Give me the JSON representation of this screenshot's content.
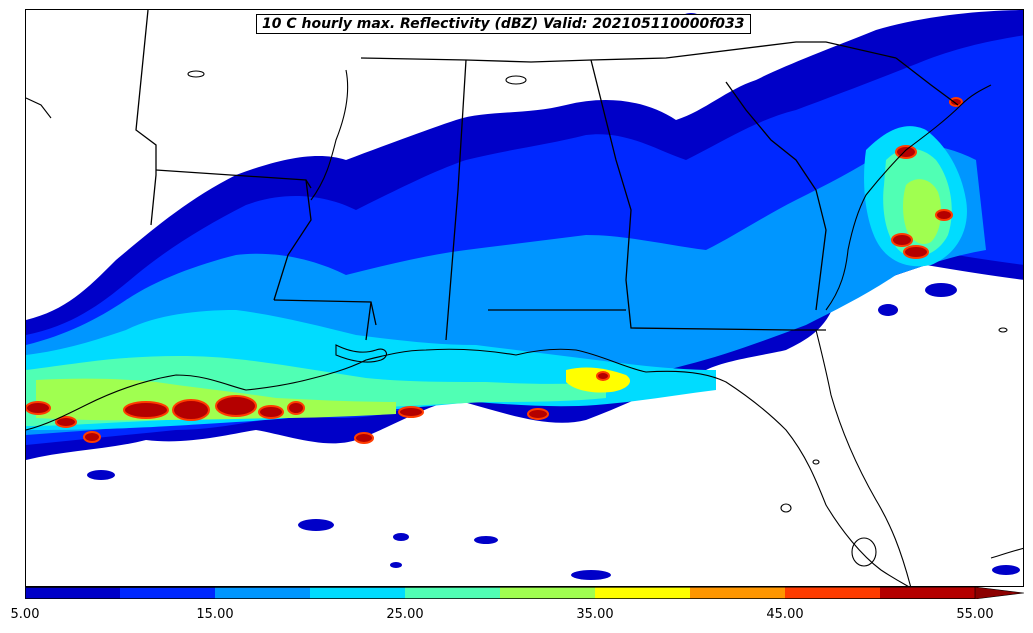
{
  "title": "10 C hourly max. Reflectivity (dBZ) Valid: 202105110000f033",
  "colorbar": {
    "bins": [
      {
        "from": 5,
        "to": 10,
        "color": "#0000c8"
      },
      {
        "from": 10,
        "to": 15,
        "color": "#0028ff"
      },
      {
        "from": 15,
        "to": 20,
        "color": "#0096ff"
      },
      {
        "from": 20,
        "to": 25,
        "color": "#00dcff"
      },
      {
        "from": 25,
        "to": 30,
        "color": "#50ffb4"
      },
      {
        "from": 30,
        "to": 35,
        "color": "#a0ff50"
      },
      {
        "from": 35,
        "to": 40,
        "color": "#ffff00"
      },
      {
        "from": 40,
        "to": 45,
        "color": "#ff9600"
      },
      {
        "from": 45,
        "to": 50,
        "color": "#ff3c00"
      },
      {
        "from": 50,
        "to": 55,
        "color": "#b40000"
      }
    ],
    "extend_color": "#8c0000",
    "tick_labels": [
      "5.00",
      "15.00",
      "25.00",
      "35.00",
      "45.00",
      "55.00"
    ]
  }
}
